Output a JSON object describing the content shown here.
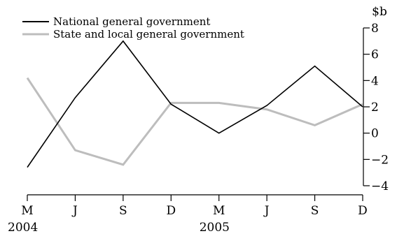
{
  "chart_data": {
    "type": "line",
    "categories": [
      "M",
      "J",
      "S",
      "D",
      "M",
      "J",
      "S",
      "D"
    ],
    "year_labels": [
      {
        "index": 0,
        "label": "2004"
      },
      {
        "index": 4,
        "label": "2005"
      }
    ],
    "ylabel": "$b",
    "ylim": [
      -4,
      8
    ],
    "yticks": [
      -4,
      -2,
      0,
      2,
      4,
      6,
      8
    ],
    "ytick_labels": [
      "−4",
      "−2",
      "0",
      "2",
      "4",
      "6",
      "8"
    ],
    "grid": false,
    "legend_position": "top-left",
    "series": [
      {
        "name": "National general government",
        "color": "#000000",
        "values": [
          -2.6,
          2.7,
          7.0,
          2.2,
          0.0,
          2.1,
          5.1,
          2.0
        ]
      },
      {
        "name": "State and local general government",
        "color": "#bdbdbd",
        "values": [
          4.2,
          -1.3,
          -2.4,
          2.3,
          2.3,
          1.8,
          0.6,
          2.2
        ]
      }
    ]
  }
}
